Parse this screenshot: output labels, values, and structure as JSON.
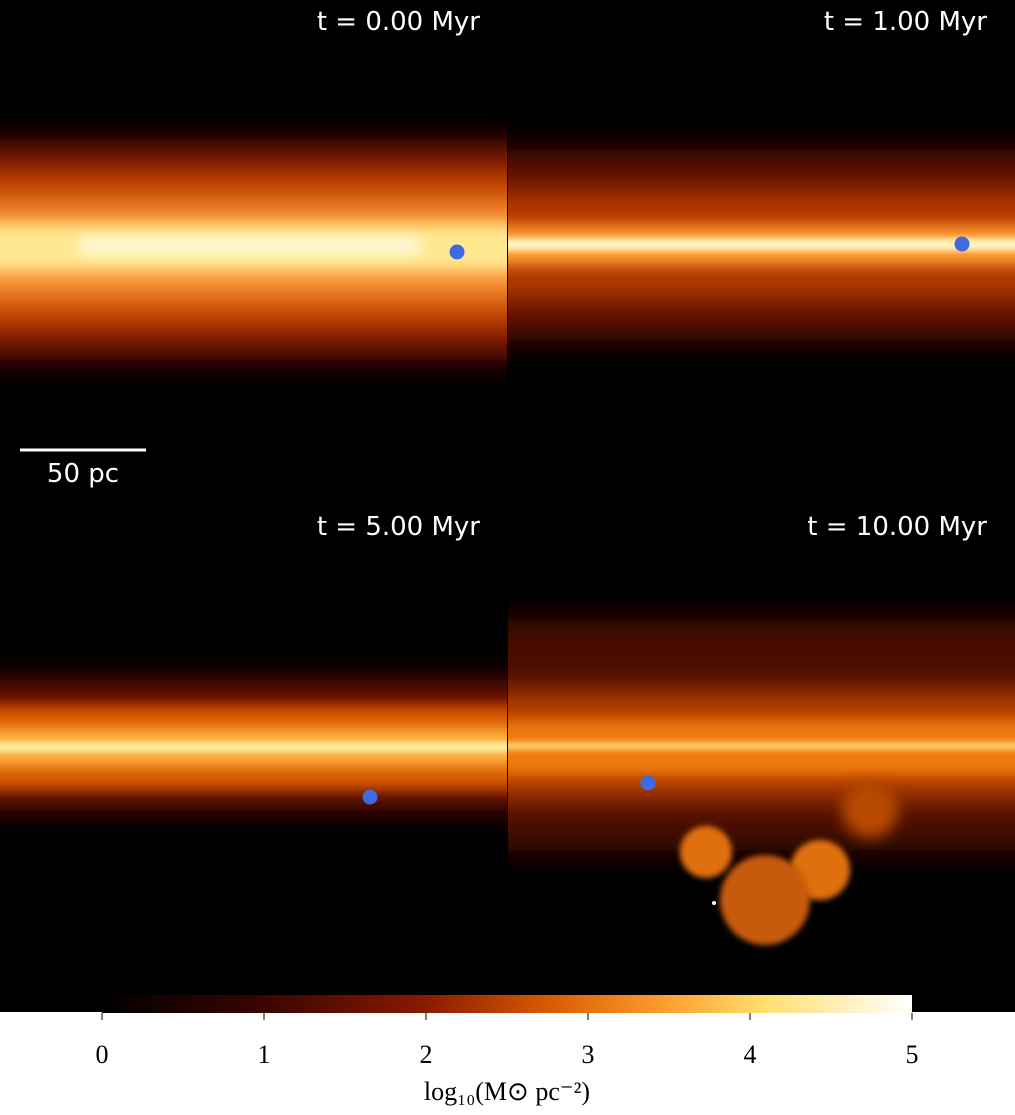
{
  "panels": [
    {
      "label": "t = 0.00 Myr"
    },
    {
      "label": "t = 1.00 Myr"
    },
    {
      "label": "t = 5.00 Myr"
    },
    {
      "label": "t = 10.00 Myr"
    }
  ],
  "scale_bar": {
    "label": "50 pc"
  },
  "colorbar": {
    "label": "log₁₀(M⊙ pc⁻²)",
    "lim": [
      0,
      5
    ],
    "ticks": [
      0,
      1,
      2,
      3,
      4,
      5
    ]
  }
}
